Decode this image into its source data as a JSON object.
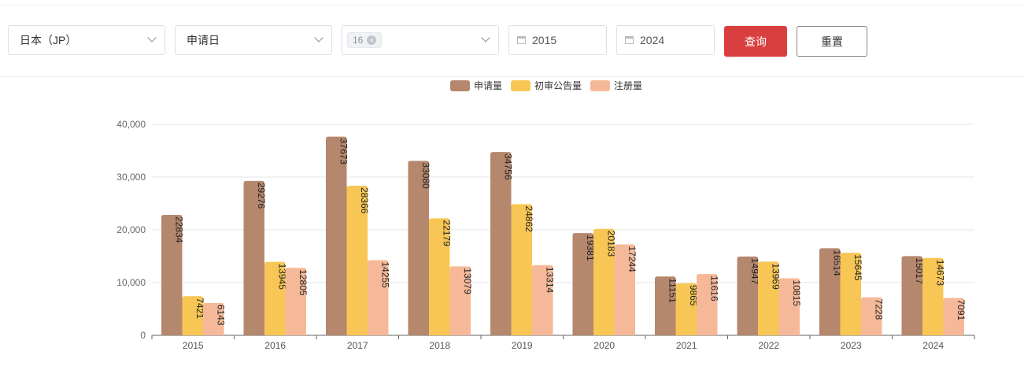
{
  "filters": {
    "country": "日本（JP）",
    "date_type": "申请日",
    "tag": "16",
    "tag_close": "×",
    "start_year": "2015",
    "end_year": "2024",
    "query": "查询",
    "reset": "重置"
  },
  "colors": {
    "primary": "#d93f3f",
    "s1": "#b5876d",
    "s2": "#f7c654",
    "s3": "#f5b999"
  },
  "chart_data": {
    "type": "bar",
    "categories": [
      "2015",
      "2016",
      "2017",
      "2018",
      "2019",
      "2020",
      "2021",
      "2022",
      "2023",
      "2024"
    ],
    "series": [
      {
        "name": "申请量",
        "values": [
          22834,
          29276,
          37673,
          33080,
          34756,
          19381,
          11151,
          14947,
          16514,
          15017
        ]
      },
      {
        "name": "初审公告量",
        "values": [
          7421,
          13945,
          28366,
          22179,
          24862,
          20183,
          9865,
          13969,
          15645,
          14673
        ]
      },
      {
        "name": "注册量",
        "values": [
          6143,
          12805,
          14255,
          13079,
          13314,
          17244,
          11616,
          10815,
          7228,
          7091
        ]
      }
    ],
    "ylim": [
      0,
      40000
    ],
    "yticks": [
      "0",
      "10,000",
      "20,000",
      "30,000",
      "40,000"
    ],
    "grid": true,
    "legend": "top-center",
    "xlabel": "",
    "ylabel": ""
  }
}
